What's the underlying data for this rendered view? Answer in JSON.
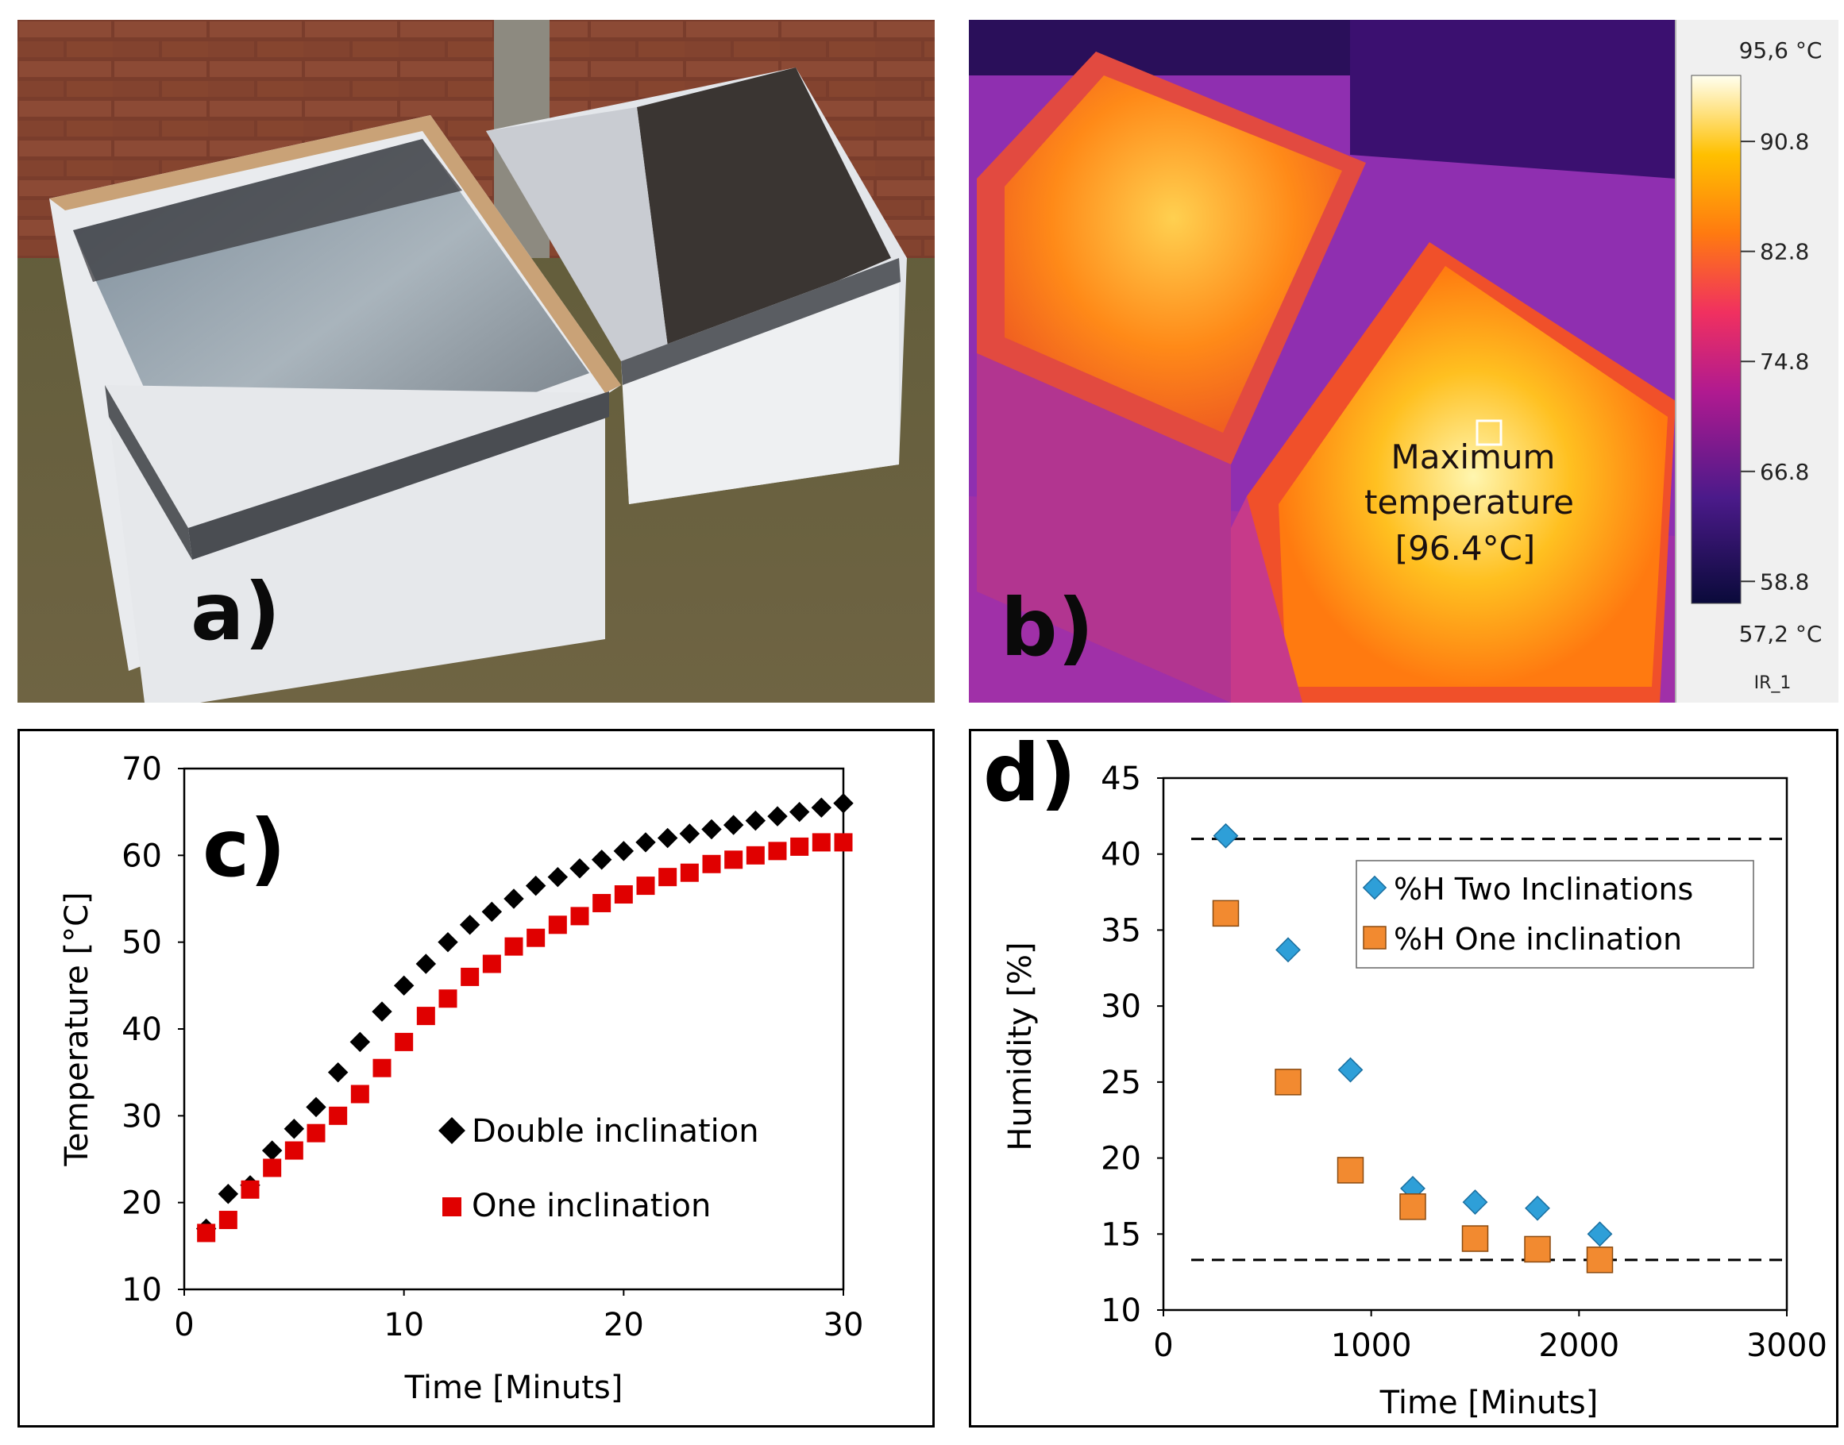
{
  "panels": {
    "a": {
      "label": "a)"
    },
    "b": {
      "label": "b)",
      "annotation": [
        "Maximum",
        "temperature",
        "[96.4°C]"
      ],
      "scale": {
        "top_value": "95,6 °C",
        "bottom_value": "57,2 °C",
        "ticks": [
          "90.8",
          "82.8",
          "74.8",
          "66.8",
          "58.8"
        ],
        "tick_values": [
          90.8,
          82.8,
          74.8,
          66.8,
          58.8
        ],
        "range": [
          57.2,
          95.6
        ],
        "name": "IR_1"
      }
    }
  },
  "chart_data": [
    {
      "panel": "c)",
      "type": "scatter",
      "title": "",
      "xlabel": "Time [Minuts]",
      "ylabel": "Temperature [°C]",
      "xlim": [
        0,
        30
      ],
      "ylim": [
        10,
        70
      ],
      "xticks": [
        0,
        10,
        20,
        30
      ],
      "yticks": [
        10,
        20,
        30,
        40,
        50,
        60,
        70
      ],
      "grid": false,
      "legend": "center-right",
      "series": [
        {
          "name": "Double inclination",
          "marker": "diamond",
          "color": "#000000",
          "x": [
            1,
            2,
            3,
            4,
            5,
            6,
            7,
            8,
            9,
            10,
            11,
            12,
            13,
            14,
            15,
            16,
            17,
            18,
            19,
            20,
            21,
            22,
            23,
            24,
            25,
            26,
            27,
            28,
            29,
            30
          ],
          "values": [
            17,
            21,
            22,
            26,
            28.5,
            31,
            35,
            38.5,
            42,
            45,
            47.5,
            50,
            52,
            53.5,
            55,
            56.5,
            57.5,
            58.5,
            59.5,
            60.5,
            61.5,
            62,
            62.5,
            63,
            63.5,
            64,
            64.5,
            65,
            65.5,
            66
          ]
        },
        {
          "name": "One inclination",
          "marker": "square",
          "color": "#e00000",
          "x": [
            1,
            2,
            3,
            4,
            5,
            6,
            7,
            8,
            9,
            10,
            11,
            12,
            13,
            14,
            15,
            16,
            17,
            18,
            19,
            20,
            21,
            22,
            23,
            24,
            25,
            26,
            27,
            28,
            29,
            30
          ],
          "values": [
            16.5,
            18,
            21.5,
            24,
            26,
            28,
            30,
            32.5,
            35.5,
            38.5,
            41.5,
            43.5,
            46,
            47.5,
            49.5,
            50.5,
            52,
            53,
            54.5,
            55.5,
            56.5,
            57.5,
            58,
            59,
            59.5,
            60,
            60.5,
            61,
            61.5,
            61.5
          ]
        }
      ]
    },
    {
      "panel": "d)",
      "type": "scatter",
      "title": "",
      "xlabel": "Time [Minuts]",
      "ylabel": "Humidity [%]",
      "xlim": [
        0,
        3000
      ],
      "ylim": [
        10,
        45
      ],
      "xticks": [
        0,
        1000,
        2000,
        3000
      ],
      "yticks": [
        10,
        15,
        20,
        25,
        30,
        35,
        40,
        45
      ],
      "grid": false,
      "legend": "top-right",
      "reference_lines": [
        41,
        13.3
      ],
      "series": [
        {
          "name": "%H Two Inclinations",
          "marker": "diamond",
          "color": "#2e9fd8",
          "x": [
            300,
            600,
            900,
            1200,
            1500,
            1800,
            2100
          ],
          "values": [
            41.2,
            33.7,
            25.8,
            18,
            17.1,
            16.7,
            15
          ]
        },
        {
          "name": "%H One inclination",
          "marker": "square",
          "color": "#f28a30",
          "x": [
            300,
            600,
            900,
            1200,
            1500,
            1800,
            2100
          ],
          "values": [
            36.1,
            25,
            19.2,
            16.8,
            14.7,
            14,
            13.3
          ]
        }
      ]
    }
  ]
}
